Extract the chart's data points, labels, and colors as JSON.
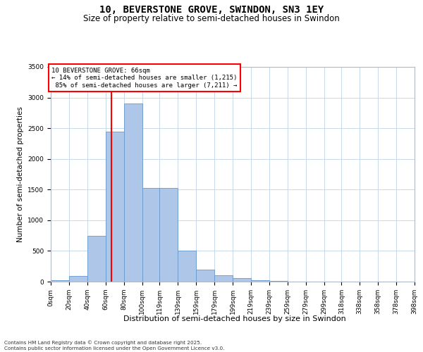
{
  "title": "10, BEVERSTONE GROVE, SWINDON, SN3 1EY",
  "subtitle": "Size of property relative to semi-detached houses in Swindon",
  "xlabel": "Distribution of semi-detached houses by size in Swindon",
  "ylabel": "Number of semi-detached properties",
  "property_size": 66,
  "property_label": "10 BEVERSTONE GROVE: 66sqm",
  "pct_smaller": 14,
  "n_smaller": 1215,
  "pct_larger": 85,
  "n_larger": 7211,
  "bin_labels": [
    "0sqm",
    "20sqm",
    "40sqm",
    "60sqm",
    "80sqm",
    "100sqm",
    "119sqm",
    "139sqm",
    "159sqm",
    "179sqm",
    "199sqm",
    "219sqm",
    "239sqm",
    "259sqm",
    "279sqm",
    "299sqm",
    "318sqm",
    "338sqm",
    "358sqm",
    "378sqm",
    "398sqm"
  ],
  "bin_edges": [
    0,
    20,
    40,
    60,
    80,
    100,
    119,
    139,
    159,
    179,
    199,
    219,
    239,
    259,
    279,
    299,
    318,
    338,
    358,
    378,
    398
  ],
  "bar_heights": [
    25,
    90,
    750,
    2450,
    2900,
    1530,
    1530,
    500,
    200,
    100,
    55,
    20,
    8,
    4,
    2,
    1,
    1,
    0,
    0,
    0,
    0
  ],
  "bar_color": "#aec6e8",
  "bar_edge_color": "#6699cc",
  "red_line_x": 66,
  "background_color": "#ffffff",
  "grid_color": "#c8d8ec",
  "ylim": [
    0,
    3500
  ],
  "yticks": [
    0,
    500,
    1000,
    1500,
    2000,
    2500,
    3000,
    3500
  ],
  "footer_text": "Contains HM Land Registry data © Crown copyright and database right 2025.\nContains public sector information licensed under the Open Government Licence v3.0.",
  "title_fontsize": 10,
  "subtitle_fontsize": 8.5,
  "tick_fontsize": 6.5,
  "ylabel_fontsize": 7.5,
  "xlabel_fontsize": 8
}
